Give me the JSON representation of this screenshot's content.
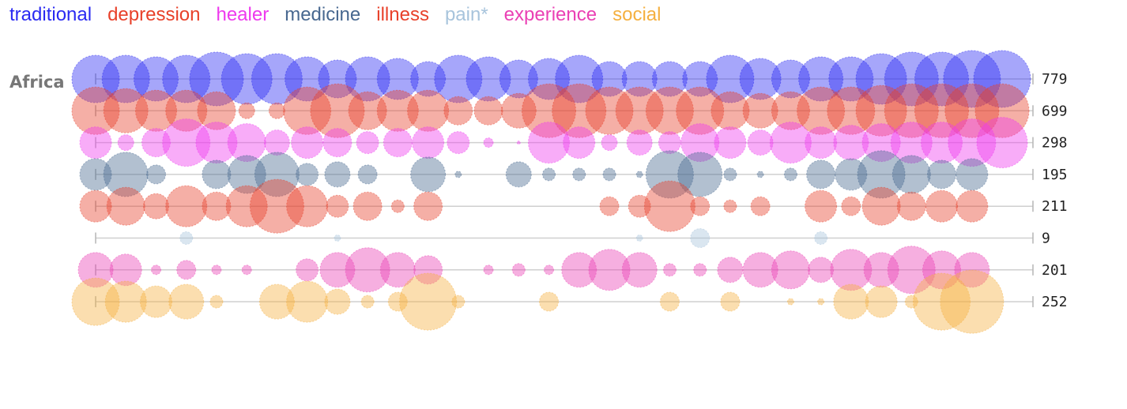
{
  "chart_data": {
    "type": "scatter",
    "region": "Africa",
    "series": [
      {
        "name": "traditional",
        "color": "#2a2af2",
        "total": "779",
        "values": [
          0.75,
          0.75,
          0.7,
          0.75,
          0.85,
          0.8,
          0.8,
          0.7,
          0.6,
          0.7,
          0.65,
          0.55,
          0.75,
          0.7,
          0.6,
          0.65,
          0.75,
          0.55,
          0.55,
          0.55,
          0.55,
          0.75,
          0.65,
          0.6,
          0.7,
          0.7,
          0.8,
          0.85,
          0.85,
          0.9,
          0.9
        ]
      },
      {
        "name": "depression",
        "color": "#e8412a",
        "total": "699",
        "values": [
          0.75,
          0.7,
          0.65,
          0.65,
          0.6,
          0.25,
          0.25,
          0.75,
          0.85,
          0.6,
          0.65,
          0.65,
          0.45,
          0.45,
          0.55,
          0.85,
          0.85,
          0.75,
          0.75,
          0.75,
          0.75,
          0.6,
          0.55,
          0.6,
          0.75,
          0.75,
          0.8,
          0.85,
          0.85,
          0.85,
          0.85
        ]
      },
      {
        "name": "healer",
        "color": "#ee3aee",
        "total": "298",
        "values": [
          0.5,
          0.25,
          0.45,
          0.75,
          0.65,
          0.6,
          0.4,
          0.5,
          0.45,
          0.35,
          0.45,
          0.5,
          0.35,
          0.15,
          0.05,
          0.65,
          0.5,
          0.25,
          0.4,
          0.35,
          0.6,
          0.5,
          0.4,
          0.65,
          0.5,
          0.55,
          0.6,
          0.65,
          0.65,
          0.75,
          0.8
        ]
      },
      {
        "name": "medicine",
        "color": "#486890",
        "total": "195",
        "values": [
          0.5,
          0.7,
          0.3,
          0.45,
          0.6,
          0.7,
          0.35,
          0.4,
          0.3,
          0.55,
          0.1,
          0.4,
          0.2,
          0.2,
          0.2,
          0.1,
          0.75,
          0.7,
          0.2,
          0.1,
          0.2,
          0.45,
          0.5,
          0.75,
          0.6,
          0.45,
          0.5
        ]
      },
      {
        "name": "illness",
        "color": "#e8412a",
        "total": "211",
        "values": [
          0.5,
          0.6,
          0.4,
          0.65,
          0.45,
          0.65,
          0.85,
          0.65,
          0.35,
          0.45,
          0.2,
          0.45,
          0.3,
          0.35,
          0.8,
          0.3,
          0.2,
          0.3,
          0.5,
          0.3,
          0.6,
          0.45,
          0.5,
          0.5
        ]
      },
      {
        "name": "pain*",
        "color": "#a8c4dc",
        "total": "9",
        "values": [
          0.2,
          0.1,
          0.1,
          0.3,
          0.2
        ]
      },
      {
        "name": "experience",
        "color": "#ea40b4",
        "total": "201",
        "values": [
          0.55,
          0.5,
          0.15,
          0.3,
          0.15,
          0.15,
          0.35,
          0.55,
          0.7,
          0.55,
          0.45,
          0.15,
          0.2,
          0.15,
          0.55,
          0.65,
          0.55,
          0.2,
          0.2,
          0.4,
          0.55,
          0.6,
          0.4,
          0.65,
          0.55,
          0.75,
          0.6,
          0.55
        ]
      },
      {
        "name": "social",
        "color": "#f5b040",
        "total": "252",
        "values": [
          0.75,
          0.65,
          0.5,
          0.55,
          0.2,
          0.55,
          0.65,
          0.4,
          0.2,
          0.3,
          0.9,
          0.2,
          0.3,
          0.3,
          0.3,
          0.1,
          0.1,
          0.55,
          0.5,
          0.2,
          0.9,
          1.0
        ]
      }
    ],
    "positions": [
      [
        0,
        1,
        2,
        3,
        4,
        5,
        6,
        7,
        8,
        9,
        10,
        11,
        12,
        13,
        14,
        15,
        16,
        17,
        18,
        19,
        20,
        21,
        22,
        23,
        24,
        25,
        26,
        27,
        28,
        29,
        30
      ],
      [
        0,
        1,
        2,
        3,
        4,
        5,
        6,
        7,
        8,
        9,
        10,
        11,
        12,
        13,
        14,
        15,
        16,
        17,
        18,
        19,
        20,
        21,
        22,
        23,
        24,
        25,
        26,
        27,
        28,
        29,
        30
      ],
      [
        0,
        1,
        2,
        3,
        4,
        5,
        6,
        7,
        8,
        9,
        10,
        11,
        12,
        13,
        14,
        15,
        16,
        17,
        18,
        19,
        20,
        21,
        22,
        23,
        24,
        25,
        26,
        27,
        28,
        29,
        30
      ],
      [
        0,
        1,
        2,
        4,
        5,
        6,
        7,
        8,
        9,
        11,
        12,
        14,
        15,
        16,
        17,
        18,
        19,
        20,
        21,
        22,
        23,
        24,
        25,
        26,
        27,
        28,
        29
      ],
      [
        0,
        1,
        2,
        3,
        4,
        5,
        6,
        7,
        8,
        9,
        10,
        11,
        17,
        18,
        19,
        20,
        21,
        22,
        24,
        25,
        26,
        27,
        28,
        29
      ],
      [
        3,
        8,
        18,
        20,
        24
      ],
      [
        0,
        1,
        2,
        3,
        4,
        5,
        7,
        8,
        9,
        10,
        11,
        13,
        14,
        15,
        16,
        17,
        18,
        19,
        20,
        21,
        22,
        23,
        24,
        25,
        26,
        27,
        28,
        29
      ],
      [
        0,
        1,
        2,
        3,
        4,
        6,
        7,
        8,
        9,
        10,
        11,
        12,
        15,
        19,
        21,
        23,
        24,
        25,
        26,
        27,
        28,
        29
      ]
    ]
  }
}
